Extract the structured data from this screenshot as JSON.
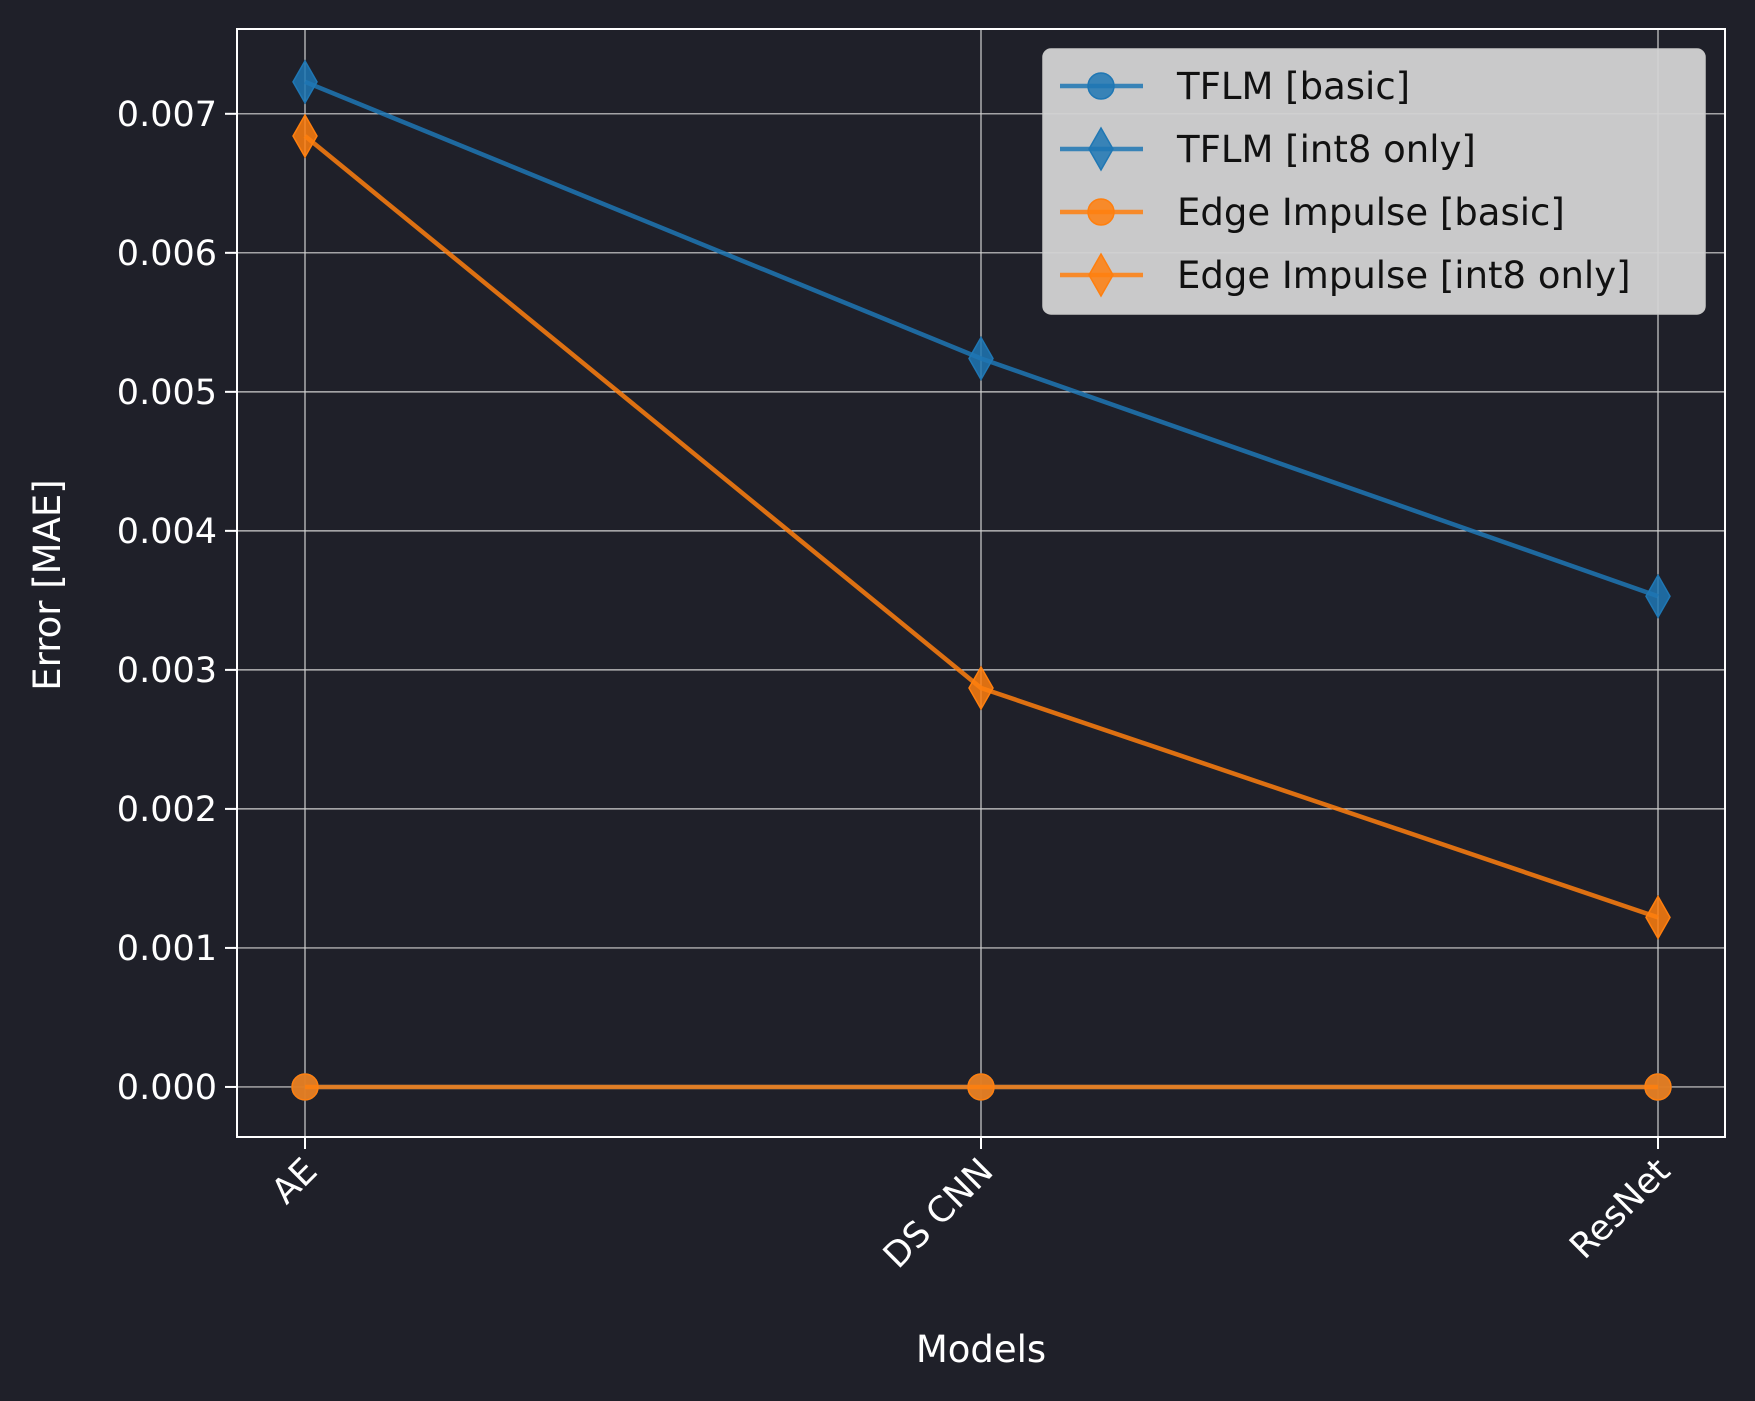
{
  "chart_data": {
    "type": "line",
    "title": "",
    "xlabel": "Models",
    "ylabel": "Error [MAE]",
    "categories": [
      "AE",
      "DS CNN",
      "ResNet"
    ],
    "yticks": [
      "0.000",
      "0.001",
      "0.002",
      "0.003",
      "0.004",
      "0.005",
      "0.006",
      "0.007"
    ],
    "ylim": [
      -0.00036,
      0.00761
    ],
    "grid": true,
    "legend_position": "top-right",
    "series": [
      {
        "name": "TFLM [basic]",
        "marker": "circle",
        "color": "#1f77b4",
        "values": [
          0.0,
          0.0,
          0.0
        ]
      },
      {
        "name": "TFLM [int8 only]",
        "marker": "diamond",
        "color": "#1f77b4",
        "values": [
          0.00723,
          0.00524,
          0.00353
        ]
      },
      {
        "name": "Edge Impulse [basic]",
        "marker": "circle",
        "color": "#ff7f0e",
        "values": [
          0.0,
          0.0,
          0.0
        ]
      },
      {
        "name": "Edge Impulse [int8 only]",
        "marker": "diamond",
        "color": "#ff7f0e",
        "values": [
          0.00684,
          0.00287,
          0.00122
        ]
      }
    ],
    "colors": {
      "background": "#1f2029",
      "axes": "#ffffff",
      "grid": "#d0d0d0",
      "legend_bg": "#d3d3d3"
    }
  }
}
